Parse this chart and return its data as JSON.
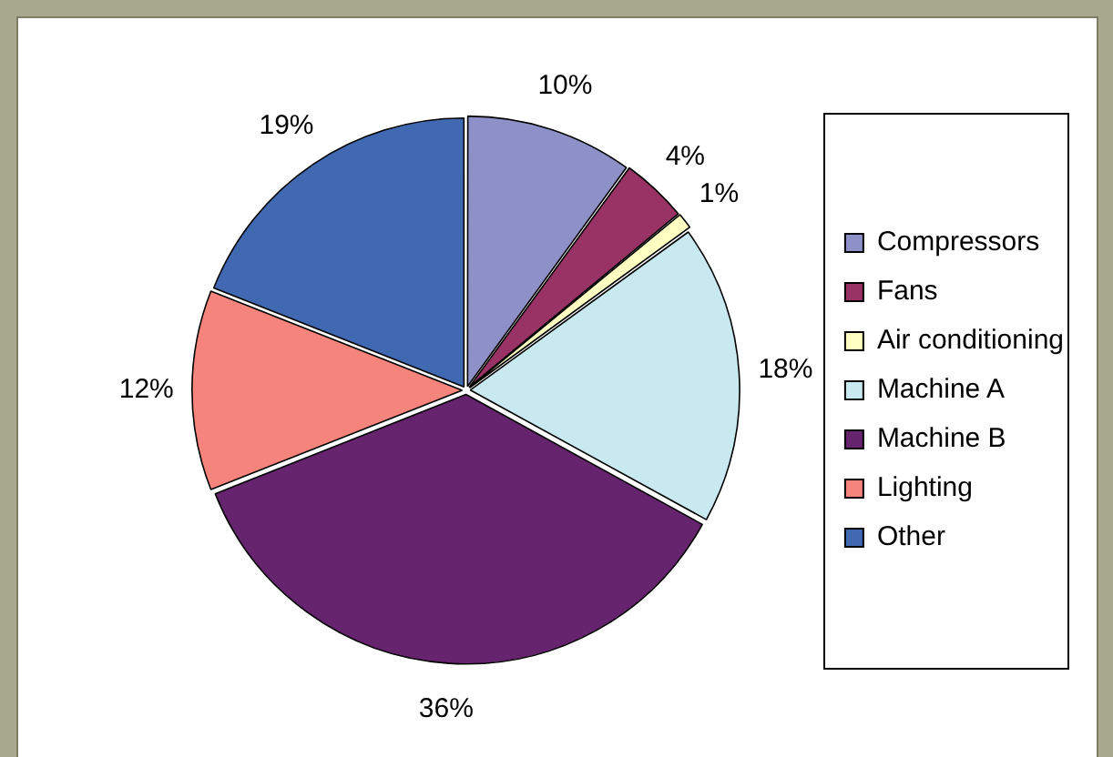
{
  "chart_data": {
    "type": "pie",
    "categories": [
      "Compressors",
      "Fans",
      "Air conditioning",
      "Machine A",
      "Machine B",
      "Lighting",
      "Other"
    ],
    "values": [
      10,
      4,
      1,
      18,
      36,
      12,
      19
    ],
    "colors": [
      "#8e90c8",
      "#993366",
      "#ffffc4",
      "#c8e9f0",
      "#66246e",
      "#f4847c",
      "#4169b2"
    ],
    "value_labels": [
      "10%",
      "4%",
      "1%",
      "18%",
      "36%",
      "12%",
      "19%"
    ],
    "legend": "right"
  }
}
